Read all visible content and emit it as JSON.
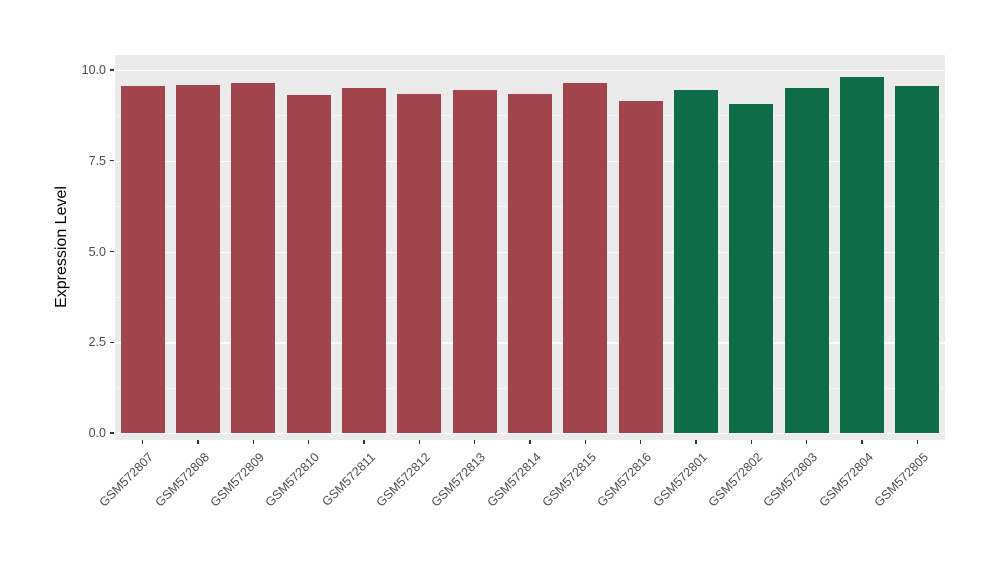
{
  "chart_data": {
    "type": "bar",
    "title": "",
    "xlabel": "",
    "ylabel": "Expression Level",
    "ylim": [
      0,
      10
    ],
    "yticks": [
      0,
      2.5,
      5,
      7.5,
      10
    ],
    "ytick_labels": [
      "0.0",
      "2.5",
      "5.0",
      "7.5",
      "10.0"
    ],
    "yticks_minor": [
      1.25,
      3.75,
      6.25,
      8.75
    ],
    "grid": "major-and-minor-white-on-gray",
    "legend": "none",
    "panel_background": "#EBEBEB",
    "categories": [
      "GSM572807",
      "GSM572808",
      "GSM572809",
      "GSM572810",
      "GSM572811",
      "GSM572812",
      "GSM572813",
      "GSM572814",
      "GSM572815",
      "GSM572816",
      "GSM572801",
      "GSM572802",
      "GSM572803",
      "GSM572804",
      "GSM572805"
    ],
    "values": [
      9.55,
      9.6,
      9.65,
      9.3,
      9.5,
      9.35,
      9.45,
      9.35,
      9.65,
      9.15,
      9.45,
      9.05,
      9.5,
      9.8,
      9.55
    ],
    "bar_colors": [
      "#A2444C",
      "#A2444C",
      "#A2444C",
      "#A2444C",
      "#A2444C",
      "#A2444C",
      "#A2444C",
      "#A2444C",
      "#A2444C",
      "#A2444C",
      "#0E6C49",
      "#0E6C49",
      "#0E6C49",
      "#0E6C49",
      "#0E6C49"
    ],
    "group_colors": {
      "group1": "#A2444C",
      "group2": "#0E6C49"
    }
  }
}
